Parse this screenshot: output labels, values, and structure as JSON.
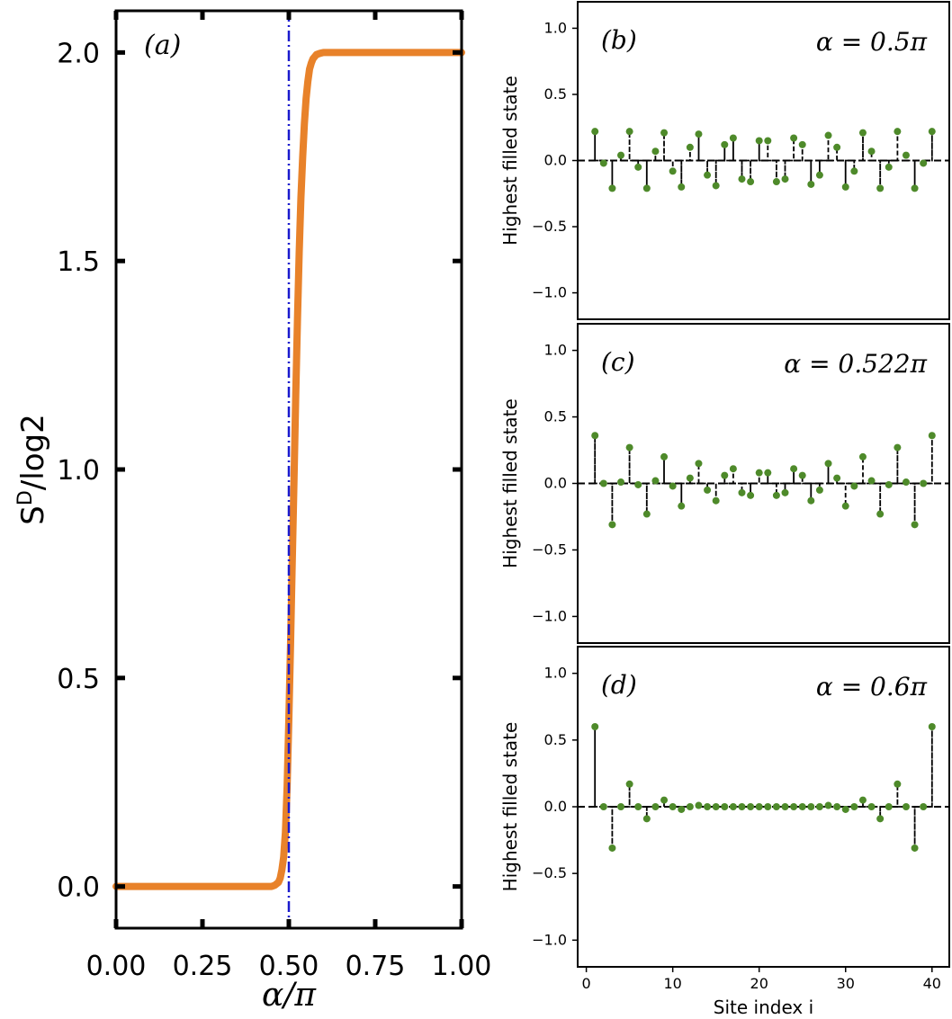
{
  "chart_data": [
    {
      "type": "line",
      "panel_label": "(a)",
      "xlabel": "α/π",
      "ylabel_base": "S",
      "ylabel_sup": "D",
      "ylabel_tail": "/log2",
      "xlim": [
        0.0,
        1.0
      ],
      "ylim": [
        -0.1,
        2.1
      ],
      "xticks": [
        0.0,
        0.25,
        0.5,
        0.75,
        1.0
      ],
      "xtick_labels": [
        "0.00",
        "0.25",
        "0.50",
        "0.75",
        "1.00"
      ],
      "yticks": [
        0.0,
        0.5,
        1.0,
        1.5,
        2.0
      ],
      "ytick_labels": [
        "0.0",
        "0.5",
        "1.0",
        "1.5",
        "2.0"
      ],
      "curve_color": "#e8822a",
      "vline_color": "#1a1acd",
      "vline_x": 0.5,
      "series": [
        {
          "name": "S^D/log2",
          "x": [
            0.0,
            0.1,
            0.2,
            0.3,
            0.4,
            0.45,
            0.46,
            0.47,
            0.475,
            0.48,
            0.485,
            0.49,
            0.495,
            0.5,
            0.505,
            0.51,
            0.515,
            0.52,
            0.525,
            0.53,
            0.535,
            0.54,
            0.545,
            0.55,
            0.555,
            0.56,
            0.565,
            0.57,
            0.575,
            0.58,
            0.59,
            0.6,
            0.62,
            0.65,
            0.7,
            0.8,
            0.9,
            1.0
          ],
          "y": [
            0.0,
            0.0,
            0.0,
            0.0,
            0.0,
            0.0,
            0.003,
            0.01,
            0.02,
            0.04,
            0.07,
            0.13,
            0.24,
            0.4,
            0.58,
            0.78,
            0.98,
            1.18,
            1.36,
            1.52,
            1.65,
            1.75,
            1.83,
            1.89,
            1.93,
            1.96,
            1.975,
            1.985,
            1.99,
            1.995,
            1.998,
            2.0,
            2.0,
            2.0,
            2.0,
            2.0,
            2.0,
            2.0
          ]
        }
      ]
    },
    {
      "type": "scatter",
      "panel_label": "(b)",
      "annotation": "α = 0.5π",
      "ylabel": "Highest filled state",
      "xlim": [
        -1,
        42
      ],
      "ylim": [
        -1.2,
        1.2
      ],
      "yticks": [
        -1.0,
        -0.5,
        0.0,
        0.5,
        1.0
      ],
      "ytick_labels": [
        "−1.0",
        "−0.5",
        "0.0",
        "0.5",
        "1.0"
      ],
      "marker_color": "#4e8a2a",
      "x": [
        1,
        2,
        3,
        4,
        5,
        6,
        7,
        8,
        9,
        10,
        11,
        12,
        13,
        14,
        15,
        16,
        17,
        18,
        19,
        20,
        21,
        22,
        23,
        24,
        25,
        26,
        27,
        28,
        29,
        30,
        31,
        32,
        33,
        34,
        35,
        36,
        37,
        38,
        39,
        40
      ],
      "values": [
        0.22,
        -0.02,
        -0.21,
        0.04,
        0.22,
        -0.05,
        -0.21,
        0.07,
        0.21,
        -0.08,
        -0.2,
        0.1,
        0.2,
        -0.11,
        -0.19,
        0.12,
        0.17,
        -0.14,
        -0.16,
        0.15,
        0.15,
        -0.16,
        -0.14,
        0.17,
        0.12,
        -0.18,
        -0.11,
        0.19,
        0.1,
        -0.2,
        -0.08,
        0.21,
        0.07,
        -0.21,
        -0.05,
        0.22,
        0.04,
        -0.21,
        -0.02,
        0.22
      ]
    },
    {
      "type": "scatter",
      "panel_label": "(c)",
      "annotation": "α = 0.522π",
      "ylabel": "Highest filled state",
      "xlim": [
        -1,
        42
      ],
      "ylim": [
        -1.2,
        1.2
      ],
      "yticks": [
        -1.0,
        -0.5,
        0.0,
        0.5,
        1.0
      ],
      "ytick_labels": [
        "−1.0",
        "−0.5",
        "0.0",
        "0.5",
        "1.0"
      ],
      "marker_color": "#4e8a2a",
      "x": [
        1,
        2,
        3,
        4,
        5,
        6,
        7,
        8,
        9,
        10,
        11,
        12,
        13,
        14,
        15,
        16,
        17,
        18,
        19,
        20,
        21,
        22,
        23,
        24,
        25,
        26,
        27,
        28,
        29,
        30,
        31,
        32,
        33,
        34,
        35,
        36,
        37,
        38,
        39,
        40
      ],
      "values": [
        0.36,
        0.0,
        -0.31,
        0.01,
        0.27,
        -0.01,
        -0.23,
        0.02,
        0.2,
        -0.02,
        -0.17,
        0.04,
        0.15,
        -0.05,
        -0.13,
        0.06,
        0.11,
        -0.07,
        -0.09,
        0.08,
        0.08,
        -0.09,
        -0.07,
        0.11,
        0.06,
        -0.13,
        -0.05,
        0.15,
        0.04,
        -0.17,
        -0.02,
        0.2,
        0.02,
        -0.23,
        -0.01,
        0.27,
        0.01,
        -0.31,
        0.0,
        0.36
      ]
    },
    {
      "type": "scatter",
      "panel_label": "(d)",
      "annotation": "α = 0.6π",
      "ylabel": "Highest filled state",
      "xlabel": "Site index i",
      "xlim": [
        -1,
        42
      ],
      "ylim": [
        -1.2,
        1.2
      ],
      "xticks": [
        0,
        10,
        20,
        30,
        40
      ],
      "xtick_labels": [
        "0",
        "10",
        "20",
        "30",
        "40"
      ],
      "yticks": [
        -1.0,
        -0.5,
        0.0,
        0.5,
        1.0
      ],
      "ytick_labels": [
        "−1.0",
        "−0.5",
        "0.0",
        "0.5",
        "1.0"
      ],
      "marker_color": "#4e8a2a",
      "x": [
        1,
        2,
        3,
        4,
        5,
        6,
        7,
        8,
        9,
        10,
        11,
        12,
        13,
        14,
        15,
        16,
        17,
        18,
        19,
        20,
        21,
        22,
        23,
        24,
        25,
        26,
        27,
        28,
        29,
        30,
        31,
        32,
        33,
        34,
        35,
        36,
        37,
        38,
        39,
        40
      ],
      "values": [
        0.6,
        0.0,
        -0.31,
        0.0,
        0.17,
        0.0,
        -0.09,
        0.0,
        0.05,
        0.0,
        -0.02,
        0.0,
        0.01,
        0.0,
        0.0,
        0.0,
        0.0,
        0.0,
        0.0,
        0.0,
        0.0,
        0.0,
        0.0,
        0.0,
        0.0,
        0.0,
        0.0,
        0.01,
        0.0,
        -0.02,
        0.0,
        0.05,
        0.0,
        -0.09,
        0.0,
        0.17,
        0.0,
        -0.31,
        0.0,
        0.6
      ]
    }
  ]
}
